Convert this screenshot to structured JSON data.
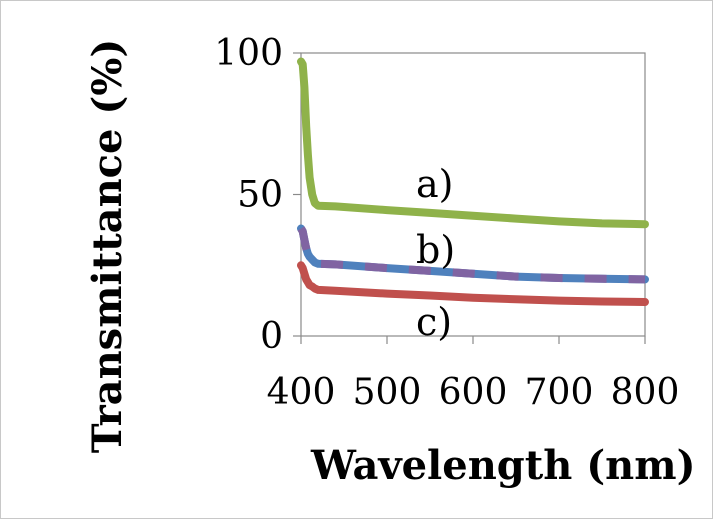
{
  "chart_data": {
    "type": "line",
    "title": "",
    "xlabel": "Wavelength (nm)",
    "ylabel": "Transmittance (%)",
    "xlim": [
      400,
      800
    ],
    "ylim": [
      0,
      100
    ],
    "xticks": [
      400,
      500,
      600,
      700,
      800
    ],
    "yticks": [
      0,
      50,
      100
    ],
    "grid": false,
    "legend": "none",
    "series": [
      {
        "label": "a)",
        "colors": [
          "#8fb24a"
        ],
        "x": [
          400,
          402,
          404,
          406,
          408,
          410,
          413,
          416,
          420,
          440,
          500,
          550,
          600,
          650,
          700,
          750,
          800
        ],
        "y": [
          97,
          96,
          88,
          74,
          64,
          56,
          50,
          47,
          46,
          45.8,
          44.5,
          43.5,
          42.5,
          41.5,
          40.5,
          39.8,
          39.5
        ]
      },
      {
        "label": "b)",
        "colors": [
          "#4f81bd",
          "#8064a2"
        ],
        "x": [
          400,
          402,
          404,
          406,
          408,
          410,
          413,
          416,
          420,
          440,
          500,
          550,
          600,
          650,
          700,
          750,
          800
        ],
        "y": [
          38,
          37,
          34,
          31,
          29,
          28,
          27,
          26,
          25.5,
          25.3,
          24,
          23,
          22,
          21,
          20.5,
          20.2,
          20
        ]
      },
      {
        "label": "c)",
        "colors": [
          "#c0504d"
        ],
        "x": [
          400,
          402,
          404,
          406,
          408,
          410,
          413,
          416,
          420,
          440,
          500,
          550,
          600,
          650,
          700,
          750,
          800
        ],
        "y": [
          25,
          24,
          22,
          20,
          19,
          18,
          17.5,
          16.8,
          16.3,
          16,
          15,
          14.3,
          13.5,
          13,
          12.5,
          12.2,
          12
        ]
      }
    ]
  }
}
